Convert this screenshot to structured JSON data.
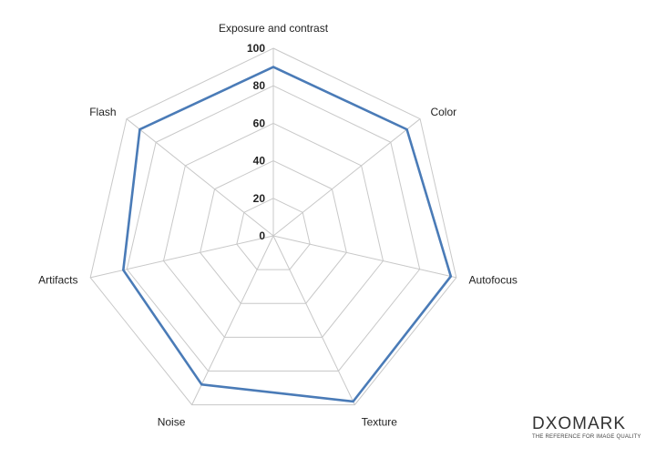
{
  "chart_data": {
    "type": "radar",
    "categories": [
      "Exposure and contrast",
      "Color",
      "Autofocus",
      "Texture",
      "Noise",
      "Artifacts",
      "Flash"
    ],
    "series": [
      {
        "values": [
          90,
          91,
          97,
          98,
          88,
          82,
          91
        ],
        "color": "#4a7bb7"
      }
    ],
    "rlim": [
      0,
      100
    ],
    "ticks": [
      0,
      20,
      40,
      60,
      80,
      100
    ],
    "grid": true
  },
  "logo": {
    "brand": "DXOMARK",
    "tagline": "THE REFERENCE FOR IMAGE QUALITY"
  }
}
